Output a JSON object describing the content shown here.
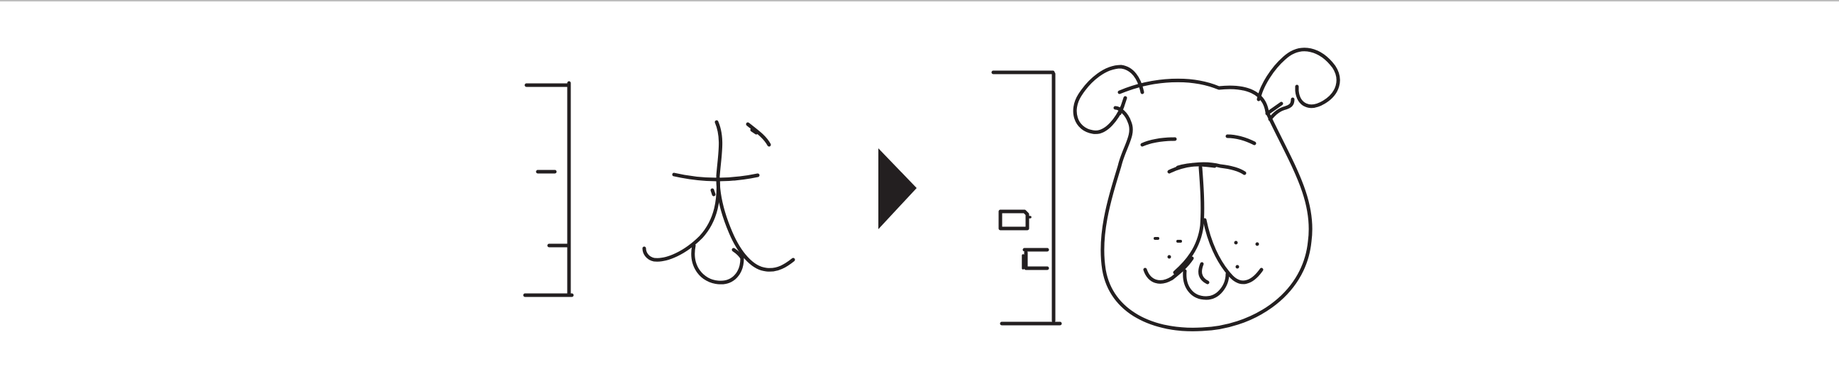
{
  "diagram": {
    "colors": {
      "ink": "#231f20",
      "background": "#ffffff",
      "top_rule": "#bdbdbd"
    },
    "left_group": {
      "glyph": "犬",
      "bracket_icon": "bracket-with-ticks-icon"
    },
    "arrow_icon": "right-triangle-arrow-icon",
    "right_group": {
      "bracket_icon": "bracket-with-boxes-icon",
      "drawing_icon": "dog-face-drawing-icon"
    }
  }
}
